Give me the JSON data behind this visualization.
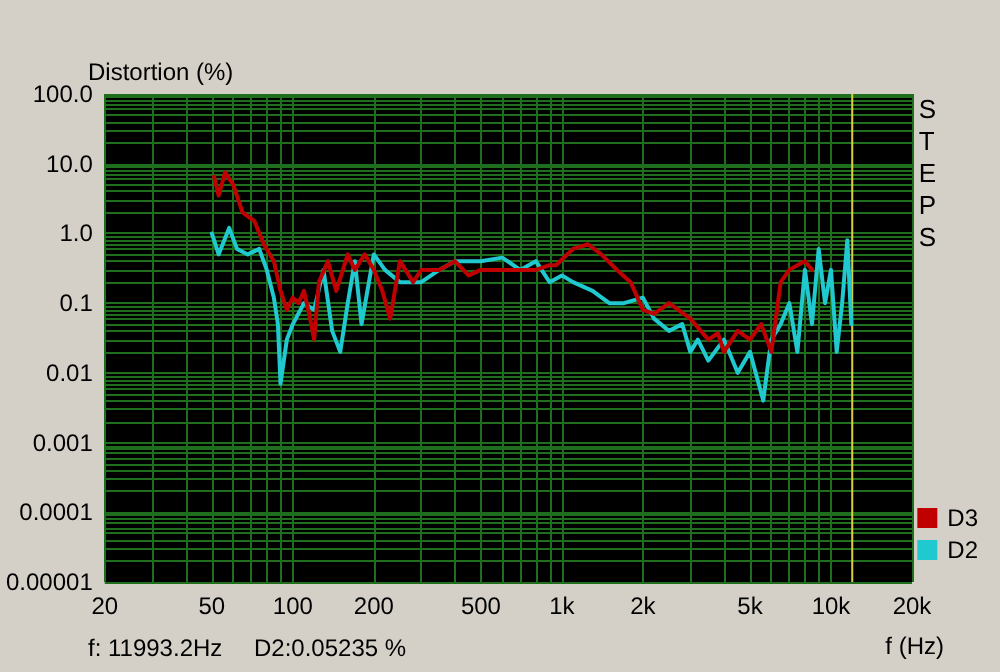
{
  "chart_data": {
    "type": "line",
    "ylabel": "Distortion (%)",
    "xlabel": "f (Hz)",
    "log": "xy",
    "grid": true,
    "legend": "bottom right",
    "marker": "none",
    "line_style": "solid",
    "xlim": [
      20,
      20000
    ],
    "xticks": [
      20,
      {
        "value": 30,
        "label": null
      },
      {
        "value": 40,
        "label": null
      },
      50,
      {
        "value": 60,
        "label": null
      },
      {
        "value": 70,
        "label": null
      },
      {
        "value": 80,
        "label": null
      },
      {
        "value": 90,
        "label": null
      },
      100,
      200,
      {
        "value": 300,
        "label": null
      },
      {
        "value": 400,
        "label": null
      },
      500,
      {
        "value": 600,
        "label": null
      },
      {
        "value": 700,
        "label": null
      },
      {
        "value": 800,
        "label": null
      },
      {
        "value": 900,
        "label": null
      },
      {
        "value": 1000,
        "label": "1k"
      },
      {
        "value": 2000,
        "label": "2k"
      },
      {
        "value": 3000,
        "label": null
      },
      {
        "value": 4000,
        "label": null
      },
      {
        "value": 5000,
        "label": "5k"
      },
      {
        "value": 6000,
        "label": null
      },
      {
        "value": 7000,
        "label": null
      },
      {
        "value": 8000,
        "label": null
      },
      {
        "value": 9000,
        "label": null
      },
      {
        "value": 10000,
        "label": "10k"
      },
      {
        "value": 20000,
        "label": "20k"
      }
    ],
    "ylim": [
      1e-05,
      100
    ],
    "yticks": [
      {
        "value": 1e-05,
        "label": "0.00001"
      },
      {
        "value": 2e-05,
        "label": null
      },
      {
        "value": 3e-05,
        "label": null
      },
      {
        "value": 4e-05,
        "label": null
      },
      {
        "value": 5e-05,
        "label": null
      },
      {
        "value": 6e-05,
        "label": null
      },
      {
        "value": 7e-05,
        "label": null
      },
      {
        "value": 8e-05,
        "label": null
      },
      {
        "value": 9e-05,
        "label": null
      },
      {
        "value": 0.0001,
        "label": "0.0001"
      },
      {
        "value": 0.0002,
        "label": null
      },
      {
        "value": 0.0003,
        "label": null
      },
      {
        "value": 0.0004,
        "label": null
      },
      {
        "value": 0.0005,
        "label": null
      },
      {
        "value": 0.0006,
        "label": null
      },
      {
        "value": 0.0007,
        "label": null
      },
      {
        "value": 0.0008,
        "label": null
      },
      {
        "value": 0.0009,
        "label": null
      },
      {
        "value": 0.001,
        "label": "0.001"
      },
      {
        "value": 0.002,
        "label": null
      },
      {
        "value": 0.003,
        "label": null
      },
      {
        "value": 0.004,
        "label": null
      },
      {
        "value": 0.005,
        "label": null
      },
      {
        "value": 0.006,
        "label": null
      },
      {
        "value": 0.007,
        "label": null
      },
      {
        "value": 0.008,
        "label": null
      },
      {
        "value": 0.009,
        "label": null
      },
      {
        "value": 0.01,
        "label": "0.01"
      },
      {
        "value": 0.02,
        "label": null
      },
      {
        "value": 0.03,
        "label": null
      },
      {
        "value": 0.04,
        "label": null
      },
      {
        "value": 0.05,
        "label": null
      },
      {
        "value": 0.06,
        "label": null
      },
      {
        "value": 0.07,
        "label": null
      },
      {
        "value": 0.08,
        "label": null
      },
      {
        "value": 0.09,
        "label": null
      },
      {
        "value": 0.1,
        "label": "0.1"
      },
      {
        "value": 0.2,
        "label": null
      },
      {
        "value": 0.3,
        "label": null
      },
      {
        "value": 0.4,
        "label": null
      },
      {
        "value": 0.5,
        "label": null
      },
      {
        "value": 0.6,
        "label": null
      },
      {
        "value": 0.7,
        "label": null
      },
      {
        "value": 0.8,
        "label": null
      },
      {
        "value": 0.9,
        "label": null
      },
      {
        "value": 1,
        "label": "1.0"
      },
      {
        "value": 2,
        "label": null
      },
      {
        "value": 3,
        "label": null
      },
      {
        "value": 4,
        "label": null
      },
      {
        "value": 5,
        "label": null
      },
      {
        "value": 6,
        "label": null
      },
      {
        "value": 7,
        "label": null
      },
      {
        "value": 8,
        "label": null
      },
      {
        "value": 9,
        "label": null
      },
      {
        "value": 10,
        "label": "10.0"
      },
      {
        "value": 20,
        "label": null
      },
      {
        "value": 30,
        "label": null
      },
      {
        "value": 40,
        "label": null
      },
      {
        "value": 50,
        "label": null
      },
      {
        "value": 60,
        "label": null
      },
      {
        "value": 70,
        "label": null
      },
      {
        "value": 80,
        "label": null
      },
      {
        "value": 90,
        "label": null
      },
      {
        "value": 100,
        "label": "100.0"
      }
    ],
    "ref_lines": [
      {
        "axis": "x",
        "value": 11993.2,
        "color": "#d8d040"
      }
    ],
    "annotations": [
      "STEPS",
      "f: 11993.2Hz",
      "D2:0.05235 %"
    ],
    "series": [
      {
        "name": "D3",
        "color": "#c00000",
        "x": [
          51,
          53,
          56,
          60,
          65,
          72,
          78,
          85,
          90,
          95,
          100,
          105,
          110,
          115,
          120,
          125,
          135,
          145,
          160,
          170,
          185,
          200,
          215,
          230,
          250,
          280,
          300,
          350,
          400,
          450,
          500,
          600,
          700,
          800,
          900,
          950,
          1100,
          1250,
          1400,
          1600,
          1800,
          2000,
          2200,
          2500,
          3000,
          3500,
          3800,
          4000,
          4500,
          5000,
          5500,
          6000,
          6500,
          7000,
          7700,
          8000,
          8500
        ],
        "values": [
          6.5,
          3.5,
          7.5,
          5,
          2,
          1.5,
          0.7,
          0.4,
          0.15,
          0.08,
          0.12,
          0.1,
          0.15,
          0.07,
          0.03,
          0.2,
          0.4,
          0.15,
          0.5,
          0.3,
          0.5,
          0.3,
          0.15,
          0.06,
          0.4,
          0.2,
          0.3,
          0.3,
          0.4,
          0.25,
          0.3,
          0.3,
          0.3,
          0.3,
          0.35,
          0.35,
          0.6,
          0.7,
          0.5,
          0.3,
          0.2,
          0.08,
          0.07,
          0.1,
          0.06,
          0.03,
          0.037,
          0.02,
          0.04,
          0.03,
          0.05,
          0.02,
          0.2,
          0.3,
          0.37,
          0.4,
          0.3
        ]
      },
      {
        "name": "D2",
        "color": "#20c8d0",
        "x": [
          50,
          53,
          58,
          62,
          68,
          75,
          80,
          85,
          88,
          90,
          95,
          100,
          110,
          120,
          130,
          140,
          150,
          160,
          170,
          180,
          200,
          220,
          250,
          300,
          350,
          400,
          500,
          600,
          700,
          800,
          900,
          1000,
          1100,
          1300,
          1500,
          1700,
          2000,
          2200,
          2500,
          2800,
          3000,
          3200,
          3500,
          4000,
          4500,
          5000,
          5600,
          6000,
          6500,
          7000,
          7500,
          8000,
          8500,
          9000,
          9500,
          10000,
          10500,
          11000,
          11500,
          11900
        ],
        "values": [
          1.0,
          0.5,
          1.2,
          0.6,
          0.5,
          0.6,
          0.3,
          0.12,
          0.05,
          0.007,
          0.03,
          0.05,
          0.1,
          0.08,
          0.3,
          0.04,
          0.02,
          0.1,
          0.4,
          0.05,
          0.5,
          0.3,
          0.2,
          0.2,
          0.3,
          0.4,
          0.4,
          0.45,
          0.3,
          0.4,
          0.2,
          0.25,
          0.2,
          0.15,
          0.1,
          0.1,
          0.12,
          0.06,
          0.04,
          0.05,
          0.02,
          0.03,
          0.015,
          0.03,
          0.01,
          0.02,
          0.004,
          0.03,
          0.05,
          0.1,
          0.02,
          0.3,
          0.05,
          0.6,
          0.1,
          0.3,
          0.02,
          0.1,
          0.8,
          0.05
        ]
      }
    ]
  }
}
